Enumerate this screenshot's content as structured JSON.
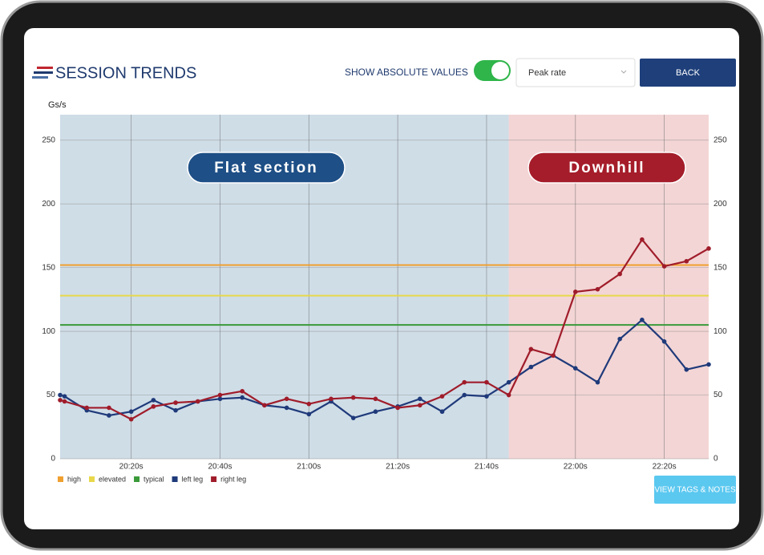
{
  "header": {
    "title": "SESSION TRENDS",
    "toggle_label": "SHOW ABSOLUTE VALUES",
    "toggle_on": true,
    "dropdown": "Peak rate",
    "back_button": "BACK"
  },
  "chart_data": {
    "type": "line",
    "y_label": "Gs/s",
    "x": [
      1204,
      1205,
      1210,
      1215,
      1220,
      1225,
      1230,
      1235,
      1240,
      1245,
      1250,
      1255,
      1260,
      1265,
      1270,
      1275,
      1280,
      1285,
      1290,
      1295,
      1300,
      1305,
      1310,
      1315,
      1320,
      1325,
      1330,
      1335,
      1340,
      1345,
      1350
    ],
    "series": [
      {
        "name": "left leg",
        "color": "#1f3a7a",
        "values": [
          50,
          49,
          38,
          34,
          37,
          46,
          38,
          45,
          47,
          48,
          42,
          40,
          35,
          45,
          32,
          37,
          41,
          47,
          37,
          50,
          49,
          60,
          72,
          81,
          71,
          60,
          94,
          109,
          92,
          70,
          74
        ]
      },
      {
        "name": "right leg",
        "color": "#a01c2a",
        "values": [
          46,
          45,
          40,
          40,
          31,
          41,
          44,
          45,
          50,
          53,
          42,
          47,
          43,
          47,
          48,
          47,
          40,
          42,
          49,
          60,
          60,
          50,
          86,
          81,
          131,
          133,
          145,
          172,
          151,
          155,
          165
        ]
      }
    ],
    "thresholds": [
      {
        "name": "high",
        "color": "#f0a030",
        "value": 152
      },
      {
        "name": "elevated",
        "color": "#e8d84a",
        "value": 128
      },
      {
        "name": "typical",
        "color": "#3a9a3a",
        "value": 105
      }
    ],
    "regions": [
      {
        "label": "Flat section",
        "start": 1204,
        "end": 1305,
        "color": "#cfdde7",
        "label_color": "#1e4f86"
      },
      {
        "label": "Downhill",
        "start": 1305,
        "end": 1350,
        "color": "#f3d5d5",
        "label_color": "#a51d2a"
      }
    ],
    "xlim": [
      1204,
      1350
    ],
    "xticks": [
      {
        "value": 1220,
        "label": "20:20s"
      },
      {
        "value": 1240,
        "label": "20:40s"
      },
      {
        "value": 1260,
        "label": "21:00s"
      },
      {
        "value": 1280,
        "label": "21:20s"
      },
      {
        "value": 1300,
        "label": "21:40s"
      },
      {
        "value": 1320,
        "label": "22:00s"
      },
      {
        "value": 1340,
        "label": "22:20s"
      }
    ],
    "ylim": [
      0,
      270
    ],
    "yticks": [
      0,
      50,
      100,
      150,
      200,
      250
    ],
    "grid": true
  },
  "footer": {
    "button": "VIEW TAGS & NOTES"
  }
}
